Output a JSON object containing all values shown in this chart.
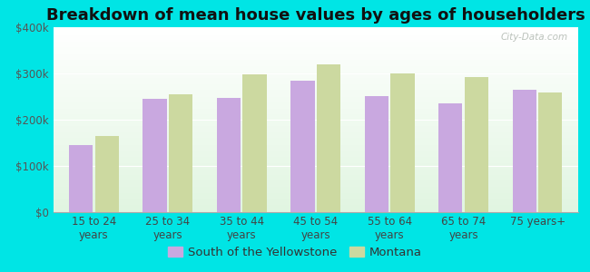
{
  "title": "Breakdown of mean house values by ages of householders",
  "categories": [
    "15 to 24\nyears",
    "25 to 34\nyears",
    "35 to 44\nyears",
    "45 to 54\nyears",
    "55 to 64\nyears",
    "65 to 74\nyears",
    "75 years+"
  ],
  "south_values": [
    145000,
    245000,
    248000,
    285000,
    250000,
    235000,
    265000
  ],
  "montana_values": [
    165000,
    255000,
    298000,
    320000,
    300000,
    292000,
    258000
  ],
  "south_color": "#c9a8e0",
  "montana_color": "#ccd9a0",
  "background_color": "#00e5e5",
  "ylim": [
    0,
    400000
  ],
  "yticks": [
    0,
    100000,
    200000,
    300000,
    400000
  ],
  "ytick_labels": [
    "$0",
    "$100k",
    "$200k",
    "$300k",
    "$400k"
  ],
  "legend_south": "South of the Yellowstone",
  "legend_montana": "Montana",
  "watermark": "City-Data.com",
  "title_fontsize": 13,
  "tick_fontsize": 8.5,
  "legend_fontsize": 9.5,
  "bar_width": 0.32,
  "bar_gap": 0.03
}
